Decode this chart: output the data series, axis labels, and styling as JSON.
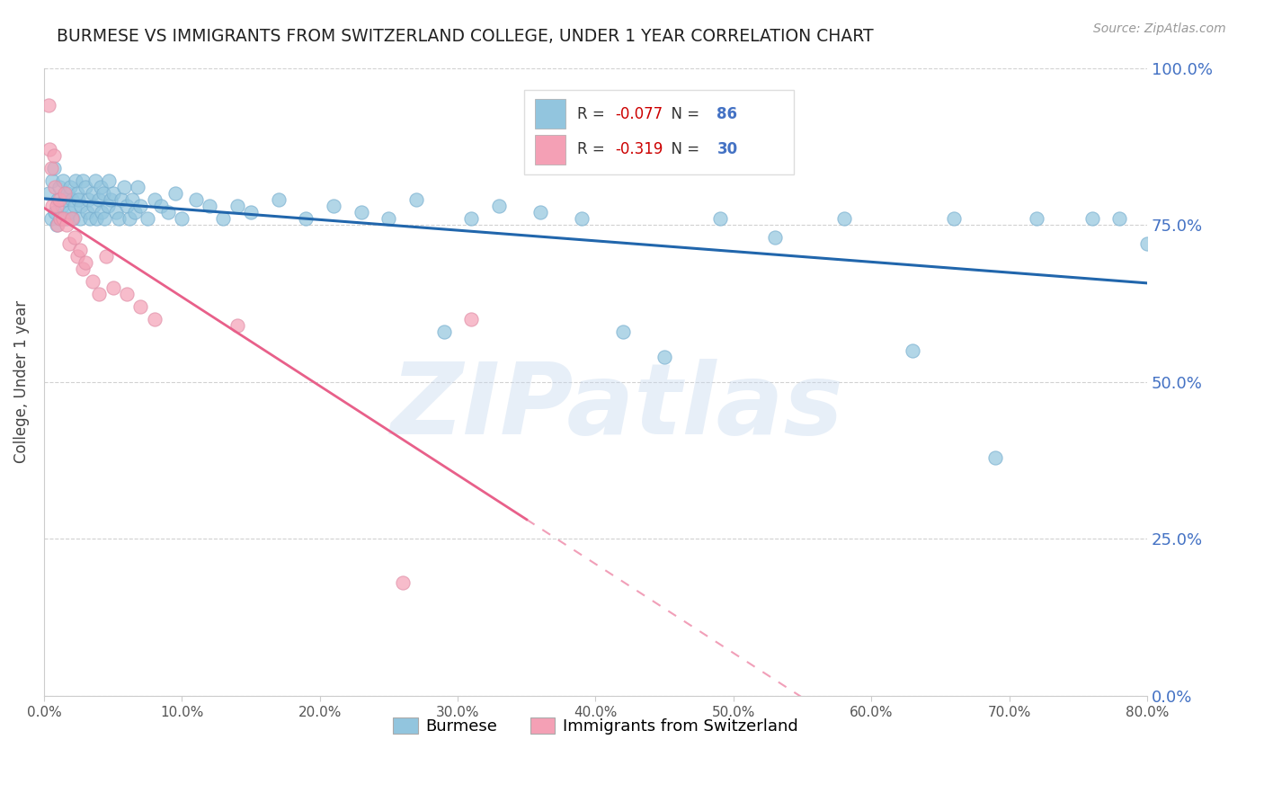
{
  "title": "BURMESE VS IMMIGRANTS FROM SWITZERLAND COLLEGE, UNDER 1 YEAR CORRELATION CHART",
  "source": "Source: ZipAtlas.com",
  "ylabel": "College, Under 1 year",
  "blue_label": "Burmese",
  "pink_label": "Immigrants from Switzerland",
  "blue_R": -0.077,
  "blue_N": 86,
  "pink_R": -0.319,
  "pink_N": 30,
  "blue_color": "#92c5de",
  "pink_color": "#f4a0b5",
  "blue_line_color": "#2166ac",
  "pink_line_color": "#e8608a",
  "watermark": "ZIPatlas",
  "xlim": [
    0.0,
    0.8
  ],
  "ylim": [
    0.0,
    1.0
  ],
  "blue_x": [
    0.003,
    0.005,
    0.006,
    0.007,
    0.008,
    0.009,
    0.01,
    0.011,
    0.012,
    0.013,
    0.014,
    0.015,
    0.016,
    0.017,
    0.018,
    0.019,
    0.02,
    0.021,
    0.022,
    0.023,
    0.024,
    0.025,
    0.026,
    0.027,
    0.028,
    0.03,
    0.031,
    0.032,
    0.033,
    0.035,
    0.036,
    0.037,
    0.038,
    0.04,
    0.041,
    0.042,
    0.043,
    0.044,
    0.046,
    0.047,
    0.048,
    0.05,
    0.052,
    0.054,
    0.056,
    0.058,
    0.06,
    0.062,
    0.064,
    0.066,
    0.068,
    0.07,
    0.075,
    0.08,
    0.085,
    0.09,
    0.095,
    0.1,
    0.11,
    0.12,
    0.13,
    0.14,
    0.15,
    0.17,
    0.19,
    0.21,
    0.23,
    0.25,
    0.27,
    0.29,
    0.31,
    0.33,
    0.36,
    0.39,
    0.42,
    0.45,
    0.49,
    0.53,
    0.58,
    0.63,
    0.66,
    0.69,
    0.72,
    0.76,
    0.78,
    0.8
  ],
  "blue_y": [
    0.8,
    0.76,
    0.82,
    0.84,
    0.77,
    0.75,
    0.79,
    0.81,
    0.76,
    0.78,
    0.82,
    0.79,
    0.76,
    0.8,
    0.77,
    0.81,
    0.79,
    0.76,
    0.78,
    0.82,
    0.8,
    0.79,
    0.76,
    0.78,
    0.82,
    0.81,
    0.77,
    0.79,
    0.76,
    0.8,
    0.78,
    0.82,
    0.76,
    0.79,
    0.81,
    0.77,
    0.8,
    0.76,
    0.78,
    0.82,
    0.79,
    0.8,
    0.77,
    0.76,
    0.79,
    0.81,
    0.78,
    0.76,
    0.79,
    0.77,
    0.81,
    0.78,
    0.76,
    0.79,
    0.78,
    0.77,
    0.8,
    0.76,
    0.79,
    0.78,
    0.76,
    0.78,
    0.77,
    0.79,
    0.76,
    0.78,
    0.77,
    0.76,
    0.79,
    0.58,
    0.76,
    0.78,
    0.77,
    0.76,
    0.58,
    0.54,
    0.76,
    0.73,
    0.76,
    0.55,
    0.76,
    0.38,
    0.76,
    0.76,
    0.76,
    0.72
  ],
  "pink_x": [
    0.003,
    0.004,
    0.005,
    0.006,
    0.007,
    0.008,
    0.009,
    0.01,
    0.011,
    0.012,
    0.014,
    0.015,
    0.016,
    0.018,
    0.02,
    0.022,
    0.024,
    0.026,
    0.028,
    0.03,
    0.035,
    0.04,
    0.045,
    0.05,
    0.06,
    0.07,
    0.08,
    0.14,
    0.26,
    0.31
  ],
  "pink_y": [
    0.94,
    0.87,
    0.84,
    0.78,
    0.86,
    0.81,
    0.78,
    0.75,
    0.79,
    0.76,
    0.76,
    0.8,
    0.75,
    0.72,
    0.76,
    0.73,
    0.7,
    0.71,
    0.68,
    0.69,
    0.66,
    0.64,
    0.7,
    0.65,
    0.64,
    0.62,
    0.6,
    0.59,
    0.18,
    0.6
  ]
}
